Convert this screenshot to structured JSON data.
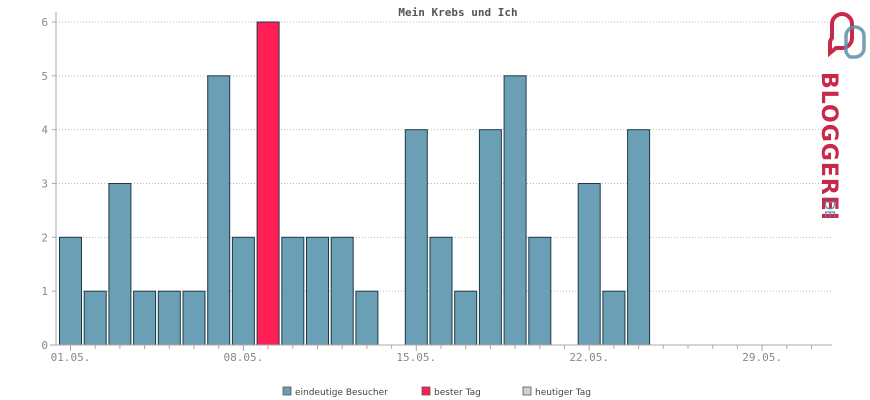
{
  "chart_data": {
    "type": "bar",
    "title": "Mein Krebs und Ich",
    "xlabel": "",
    "ylabel": "",
    "ylim": [
      0,
      6
    ],
    "y_ticks": [
      "0",
      "1",
      "2",
      "3",
      "4",
      "5",
      "6"
    ],
    "grid": true,
    "days": [
      "01.05.",
      "02.05.",
      "03.05.",
      "04.05.",
      "05.05.",
      "06.05.",
      "07.05.",
      "08.05.",
      "09.05.",
      "10.05.",
      "11.05.",
      "12.05.",
      "13.05.",
      "14.05.",
      "15.05.",
      "16.05.",
      "17.05.",
      "18.05.",
      "19.05.",
      "20.05.",
      "21.05.",
      "22.05.",
      "23.05.",
      "24.05.",
      "25.05.",
      "26.05.",
      "27.05.",
      "28.05.",
      "29.05.",
      "30.05.",
      "31.05."
    ],
    "x_tick_labels": [
      "01.05.",
      "08.05.",
      "15.05.",
      "22.05.",
      "29.05."
    ],
    "series": [
      {
        "name": "eindeutige Besucher",
        "values": [
          2,
          1,
          3,
          1,
          1,
          1,
          5,
          2,
          6,
          2,
          2,
          2,
          1,
          0,
          4,
          2,
          1,
          4,
          5,
          2,
          0,
          3,
          1,
          4,
          0,
          0,
          0,
          0,
          0,
          0,
          0
        ]
      }
    ],
    "best_day": "09.05.",
    "legend": [
      {
        "label": "eindeutige Besucher",
        "color": "#6a9fb5"
      },
      {
        "label": "bester Tag",
        "color": "#ff1f55"
      },
      {
        "label": "heutiger Tag",
        "color": "#d0d0d0"
      }
    ],
    "legend_position": "bottom"
  },
  "colors": {
    "bar": "#6a9fb5",
    "bar_stroke": "#1e3a48",
    "best": "#ff1f55",
    "today": "#d0d0d0",
    "logo_red": "#c8294a",
    "logo_blue": "#5b8fa8"
  },
  "logo": {
    "text": "BLOGGEREI",
    "tld": ".DE"
  }
}
